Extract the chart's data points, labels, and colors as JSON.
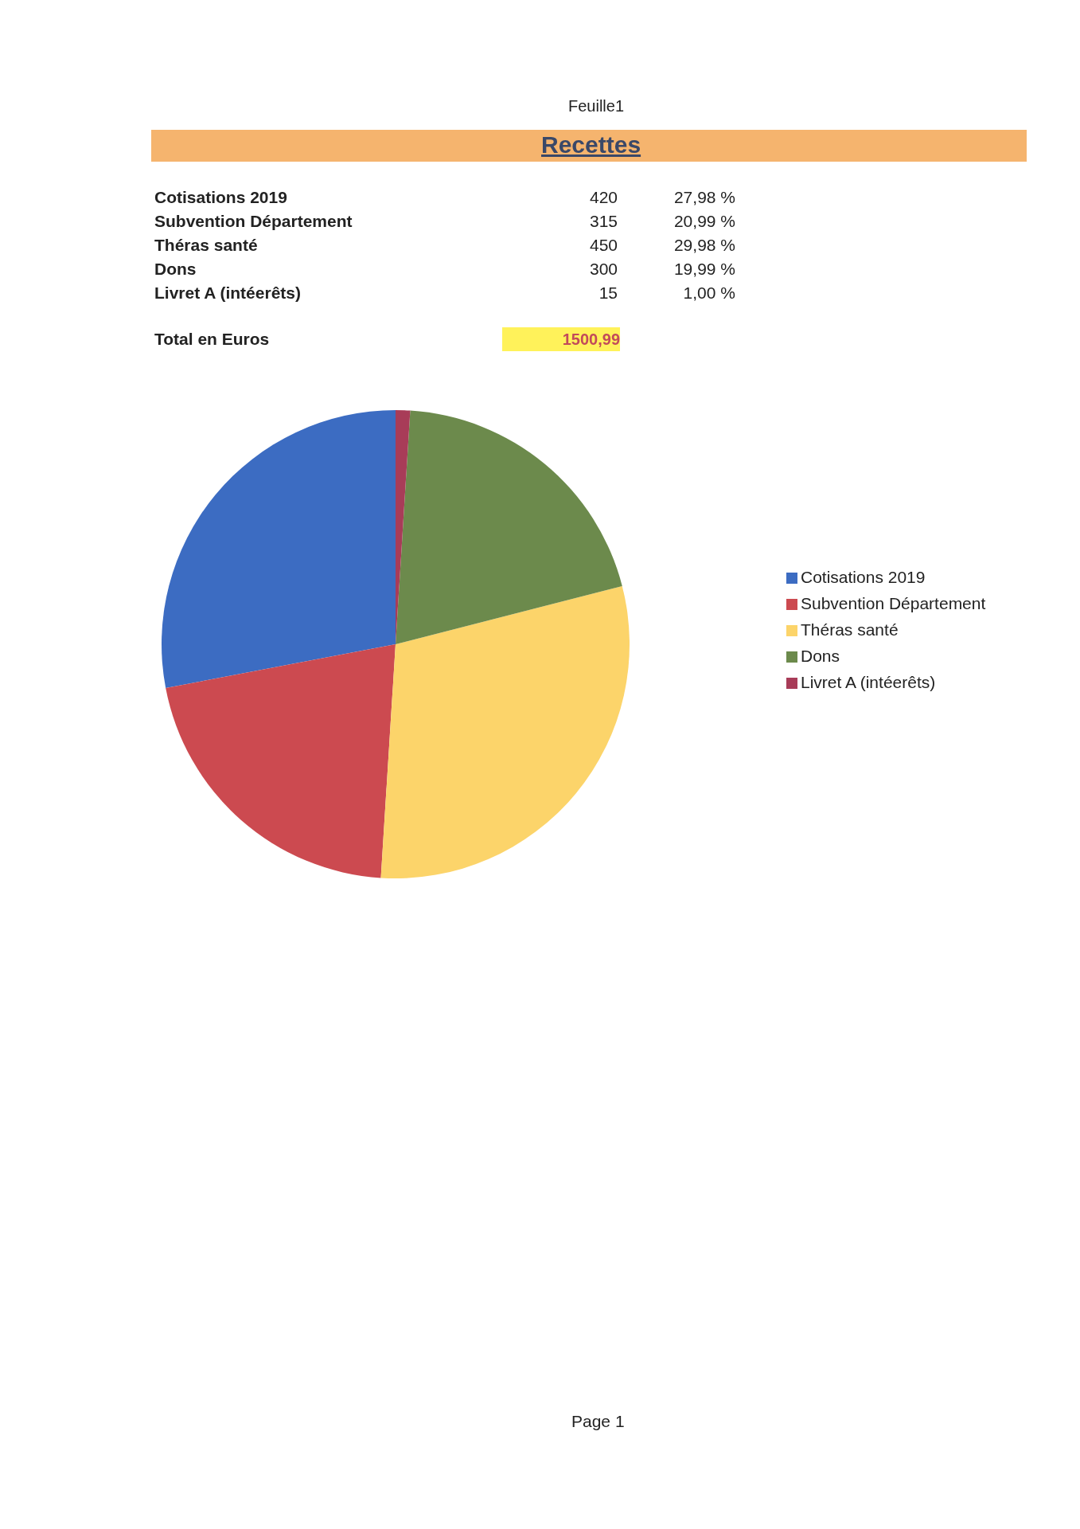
{
  "chart_data": {
    "type": "pie",
    "title": "Recettes",
    "categories": [
      "Cotisations 2019",
      "Subvention Département",
      "Théras santé",
      "Dons",
      "Livret A (intéerêts)"
    ],
    "values": [
      27.98,
      20.99,
      29.98,
      19.99,
      1.0
    ],
    "colors": [
      "#3c6cc2",
      "#cc4a50",
      "#fcd46a",
      "#6c8a4c",
      "#a83c58"
    ],
    "legend": "right",
    "annotations": [
      "Feuille1",
      "420",
      "315",
      "450",
      "300",
      "15",
      "27,98 %",
      "20,99 %",
      "29,98 %",
      "19,99 %",
      "1,00 %",
      "Total en Euros",
      "1500,99",
      "Page 1"
    ]
  }
}
